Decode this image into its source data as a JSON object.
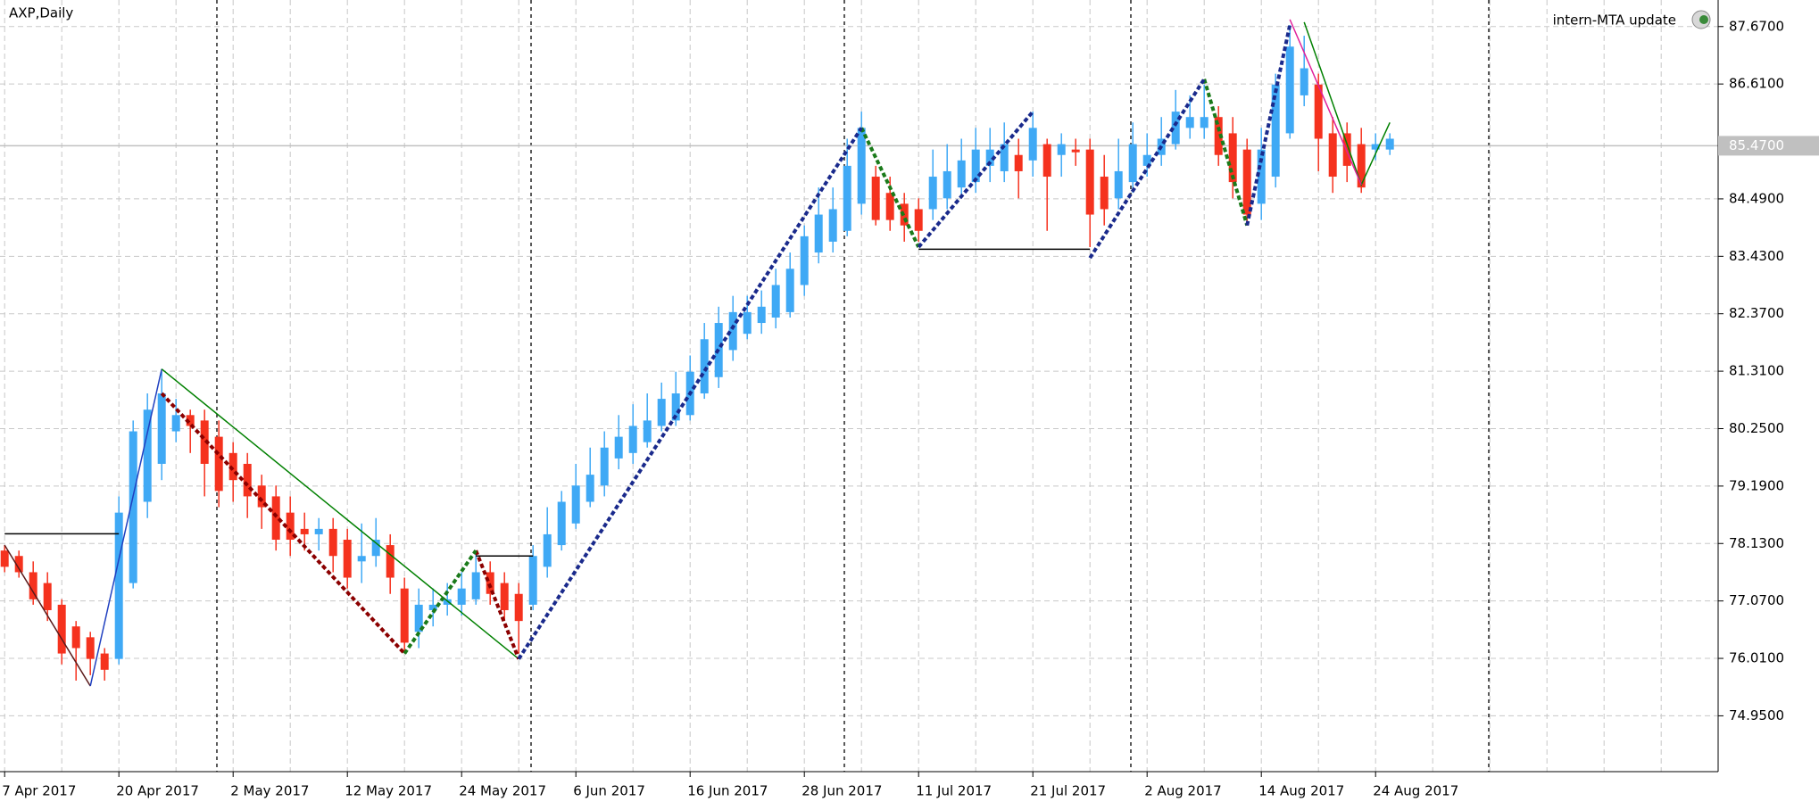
{
  "chart_data": {
    "type": "candlestick",
    "title": "AXP,Daily",
    "annotation": "intern-MTA update",
    "categories": [
      "7 Apr 2017",
      null,
      null,
      null,
      null,
      null,
      null,
      null,
      "20 Apr 2017",
      null,
      null,
      null,
      null,
      null,
      null,
      null,
      "2 May 2017",
      null,
      null,
      null,
      null,
      null,
      null,
      null,
      "12 May 2017",
      null,
      null,
      null,
      null,
      null,
      null,
      null,
      "24 May 2017",
      null,
      null,
      null,
      null,
      null,
      null,
      null,
      "6 Jun 2017",
      null,
      null,
      null,
      null,
      null,
      null,
      null,
      "16 Jun 2017",
      null,
      null,
      null,
      null,
      null,
      null,
      null,
      "28 Jun 2017",
      null,
      null,
      null,
      null,
      null,
      null,
      null,
      "11 Jul 2017",
      null,
      null,
      null,
      null,
      null,
      null,
      null,
      "21 Jul 2017",
      null,
      null,
      null,
      null,
      null,
      null,
      null,
      "2 Aug 2017",
      null,
      null,
      null,
      null,
      null,
      null,
      null,
      "14 Aug 2017",
      null,
      null,
      null,
      null,
      null,
      null,
      null,
      "24 Aug 2017",
      null
    ],
    "open": [
      78.0,
      77.9,
      77.6,
      77.4,
      77.0,
      76.6,
      76.4,
      76.1,
      76.0,
      77.4,
      78.9,
      79.6,
      80.2,
      80.5,
      80.4,
      80.1,
      79.8,
      79.6,
      79.2,
      79.0,
      78.7,
      78.4,
      78.3,
      78.4,
      78.2,
      77.8,
      77.9,
      78.1,
      77.3,
      76.5,
      76.9,
      77.0,
      77.0,
      77.1,
      77.6,
      77.4,
      77.2,
      77.0,
      77.7,
      78.1,
      78.5,
      78.9,
      79.2,
      79.7,
      79.8,
      80.0,
      80.3,
      80.4,
      80.5,
      80.9,
      81.2,
      81.7,
      82.0,
      82.2,
      82.3,
      82.4,
      82.9,
      83.5,
      83.7,
      83.9,
      84.4,
      84.9,
      84.6,
      84.4,
      84.3,
      84.3,
      84.5,
      84.7,
      84.8,
      85.1,
      85.0,
      85.3,
      85.2,
      85.5,
      85.3,
      85.4,
      85.4,
      84.9,
      84.5,
      84.8,
      85.1,
      85.3,
      85.5,
      85.8,
      85.8,
      86.0,
      85.7,
      85.4,
      84.4,
      84.9,
      85.7,
      86.4,
      86.6,
      85.7,
      85.7,
      85.5,
      85.4,
      85.4
    ],
    "high": [
      78.1,
      78.0,
      77.8,
      77.6,
      77.1,
      76.7,
      76.5,
      76.2,
      79.0,
      80.4,
      80.9,
      81.3,
      80.8,
      80.6,
      80.6,
      80.4,
      80.0,
      79.8,
      79.4,
      79.2,
      79.0,
      78.7,
      78.6,
      78.6,
      78.4,
      78.5,
      78.6,
      78.3,
      77.5,
      77.3,
      77.3,
      77.4,
      77.6,
      78.0,
      77.8,
      77.6,
      77.4,
      78.1,
      78.8,
      79.1,
      79.6,
      79.9,
      80.2,
      80.5,
      80.7,
      80.9,
      81.1,
      81.3,
      81.6,
      82.2,
      82.5,
      82.7,
      82.7,
      82.8,
      83.2,
      83.5,
      84.0,
      84.7,
      84.7,
      85.6,
      86.1,
      85.1,
      84.9,
      84.6,
      84.5,
      85.4,
      85.5,
      85.6,
      85.8,
      85.8,
      85.9,
      85.6,
      86.1,
      85.6,
      85.7,
      85.6,
      85.6,
      85.3,
      85.6,
      85.9,
      85.7,
      86.0,
      86.5,
      86.4,
      86.6,
      86.2,
      86.0,
      85.6,
      85.8,
      86.8,
      87.7,
      87.5,
      86.8,
      86.0,
      85.9,
      85.8,
      85.7,
      85.7
    ],
    "low": [
      77.6,
      77.5,
      77.0,
      76.7,
      75.9,
      75.6,
      75.7,
      75.6,
      75.9,
      77.3,
      78.6,
      79.3,
      80.0,
      79.8,
      79.0,
      78.8,
      78.9,
      78.6,
      78.4,
      78.0,
      77.9,
      78.0,
      78.0,
      77.6,
      77.3,
      77.4,
      77.7,
      77.2,
      76.1,
      76.2,
      76.6,
      76.8,
      76.8,
      77.0,
      77.0,
      76.7,
      76.1,
      76.9,
      77.5,
      78.0,
      78.4,
      78.8,
      79.0,
      79.5,
      79.6,
      79.9,
      80.2,
      80.3,
      80.4,
      80.8,
      81.0,
      81.5,
      81.9,
      82.0,
      82.1,
      82.3,
      82.7,
      83.3,
      83.5,
      83.8,
      84.2,
      84.0,
      83.9,
      83.7,
      83.7,
      84.1,
      84.3,
      84.5,
      84.6,
      84.8,
      84.8,
      84.5,
      84.9,
      83.9,
      84.9,
      85.1,
      83.6,
      84.0,
      84.3,
      84.6,
      84.9,
      85.1,
      85.4,
      85.6,
      85.6,
      85.1,
      84.5,
      84.0,
      84.1,
      84.7,
      85.6,
      86.2,
      85.0,
      84.6,
      84.8,
      84.6,
      85.2,
      85.3
    ],
    "close": [
      77.7,
      77.6,
      77.1,
      76.9,
      76.1,
      76.2,
      76.0,
      75.8,
      78.7,
      80.2,
      80.6,
      80.9,
      80.5,
      80.3,
      79.6,
      79.1,
      79.3,
      79.0,
      78.8,
      78.2,
      78.2,
      78.3,
      78.4,
      77.9,
      77.5,
      77.9,
      78.2,
      77.5,
      76.3,
      77.0,
      77.0,
      77.1,
      77.3,
      77.6,
      77.2,
      76.9,
      76.7,
      77.9,
      78.3,
      78.9,
      79.2,
      79.4,
      79.9,
      80.1,
      80.3,
      80.4,
      80.8,
      80.9,
      81.3,
      81.9,
      82.2,
      82.4,
      82.4,
      82.5,
      82.9,
      83.2,
      83.8,
      84.2,
      84.3,
      85.1,
      85.8,
      84.1,
      84.1,
      84.0,
      83.9,
      84.9,
      85.0,
      85.2,
      85.4,
      85.4,
      85.5,
      85.0,
      85.8,
      84.9,
      85.5,
      85.35,
      84.2,
      84.3,
      85.0,
      85.5,
      85.3,
      85.6,
      86.1,
      86.0,
      86.0,
      85.3,
      84.8,
      84.2,
      85.4,
      86.6,
      87.3,
      86.9,
      85.6,
      84.9,
      85.1,
      84.7,
      85.5,
      85.6
    ],
    "up_color": "#3fa9f5",
    "down_color": "#f5321e",
    "ylim": [
      73.92,
      88.16
    ],
    "yticks": [
      {
        "value": 87.67,
        "label": "87.6700"
      },
      {
        "value": 86.61,
        "label": "86.6100"
      },
      {
        "value": 84.49,
        "label": "84.4900"
      },
      {
        "value": 83.43,
        "label": "83.4300"
      },
      {
        "value": 82.37,
        "label": "82.3700"
      },
      {
        "value": 81.31,
        "label": "81.3100"
      },
      {
        "value": 80.25,
        "label": "80.2500"
      },
      {
        "value": 79.19,
        "label": "79.1900"
      },
      {
        "value": 78.13,
        "label": "78.1300"
      },
      {
        "value": 77.07,
        "label": "77.0700"
      },
      {
        "value": 76.01,
        "label": "76.0100"
      },
      {
        "value": 74.95,
        "label": "74.9500"
      }
    ],
    "current_price": {
      "value": 85.47,
      "label": "85.4700"
    },
    "grid": true,
    "lines": [
      {
        "color": "#000000",
        "dash": false,
        "points": [
          [
            0,
            78.31
          ],
          [
            8,
            78.31
          ]
        ]
      },
      {
        "color": "#000000",
        "dash": false,
        "points": [
          [
            33,
            77.9
          ],
          [
            37,
            77.9
          ]
        ]
      },
      {
        "color": "#000000",
        "dash": false,
        "points": [
          [
            64,
            83.56
          ],
          [
            76,
            83.56
          ]
        ]
      },
      {
        "color": "#5a1a1a",
        "dash": false,
        "points": [
          [
            0,
            78.1
          ],
          [
            6,
            75.5
          ]
        ]
      },
      {
        "color": "#2040c0",
        "dash": false,
        "points": [
          [
            6,
            75.5
          ],
          [
            11,
            81.35
          ]
        ]
      },
      {
        "color": "#008000",
        "dash": false,
        "points": [
          [
            11,
            81.35
          ],
          [
            36,
            76.0
          ]
        ]
      },
      {
        "color": "#008000",
        "dash": false,
        "points": [
          [
            91,
            87.75
          ],
          [
            95,
            84.75
          ],
          [
            97,
            85.9
          ]
        ]
      },
      {
        "color": "#e0209a",
        "dash": false,
        "points": [
          [
            90,
            87.8
          ],
          [
            95,
            84.75
          ]
        ]
      },
      {
        "color": "#8b0000",
        "dash": true,
        "points": [
          [
            11,
            80.9
          ],
          [
            28,
            76.1
          ]
        ]
      },
      {
        "color": "#8b0000",
        "dash": true,
        "points": [
          [
            33,
            78.0
          ],
          [
            36,
            76.0
          ]
        ]
      },
      {
        "color": "#1a7a1a",
        "dash": true,
        "points": [
          [
            28,
            76.1
          ],
          [
            33,
            78.0
          ]
        ]
      },
      {
        "color": "#1a7a1a",
        "dash": true,
        "points": [
          [
            60,
            85.8
          ],
          [
            64,
            83.6
          ]
        ]
      },
      {
        "color": "#1a7a1a",
        "dash": true,
        "points": [
          [
            84,
            86.7
          ],
          [
            87,
            84.0
          ]
        ]
      },
      {
        "color": "#1a2a8c",
        "dash": true,
        "points": [
          [
            36,
            76.0
          ],
          [
            60,
            85.8
          ]
        ]
      },
      {
        "color": "#1a2a8c",
        "dash": true,
        "points": [
          [
            64,
            83.6
          ],
          [
            72,
            86.1
          ]
        ]
      },
      {
        "color": "#1a2a8c",
        "dash": true,
        "points": [
          [
            76,
            83.4
          ],
          [
            84,
            86.7
          ]
        ]
      },
      {
        "color": "#1a2a8c",
        "dash": true,
        "points": [
          [
            87,
            84.0
          ],
          [
            90,
            87.7
          ]
        ]
      }
    ]
  }
}
